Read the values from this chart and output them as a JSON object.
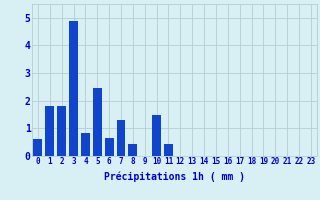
{
  "categories": [
    0,
    1,
    2,
    3,
    4,
    5,
    6,
    7,
    8,
    9,
    10,
    11,
    12,
    13,
    14,
    15,
    16,
    17,
    18,
    19,
    20,
    21,
    22,
    23
  ],
  "values": [
    0.6,
    1.8,
    1.8,
    4.9,
    0.85,
    2.45,
    0.65,
    1.3,
    0.45,
    0.0,
    1.5,
    0.45,
    0.0,
    0.0,
    0.0,
    0.0,
    0.0,
    0.0,
    0.0,
    0.0,
    0.0,
    0.0,
    0.0,
    0.0
  ],
  "bar_color": "#1144cc",
  "background_color": "#d8f0f4",
  "grid_color": "#b8ccd4",
  "text_color": "#0000cc",
  "xlabel": "Précipitations 1h ( mm )",
  "ylim": [
    0,
    5.5
  ],
  "yticks": [
    0,
    1,
    2,
    3,
    4,
    5
  ],
  "xlabel_fontsize": 7.0,
  "tick_fontsize": 5.5,
  "ytick_fontsize": 7.0
}
